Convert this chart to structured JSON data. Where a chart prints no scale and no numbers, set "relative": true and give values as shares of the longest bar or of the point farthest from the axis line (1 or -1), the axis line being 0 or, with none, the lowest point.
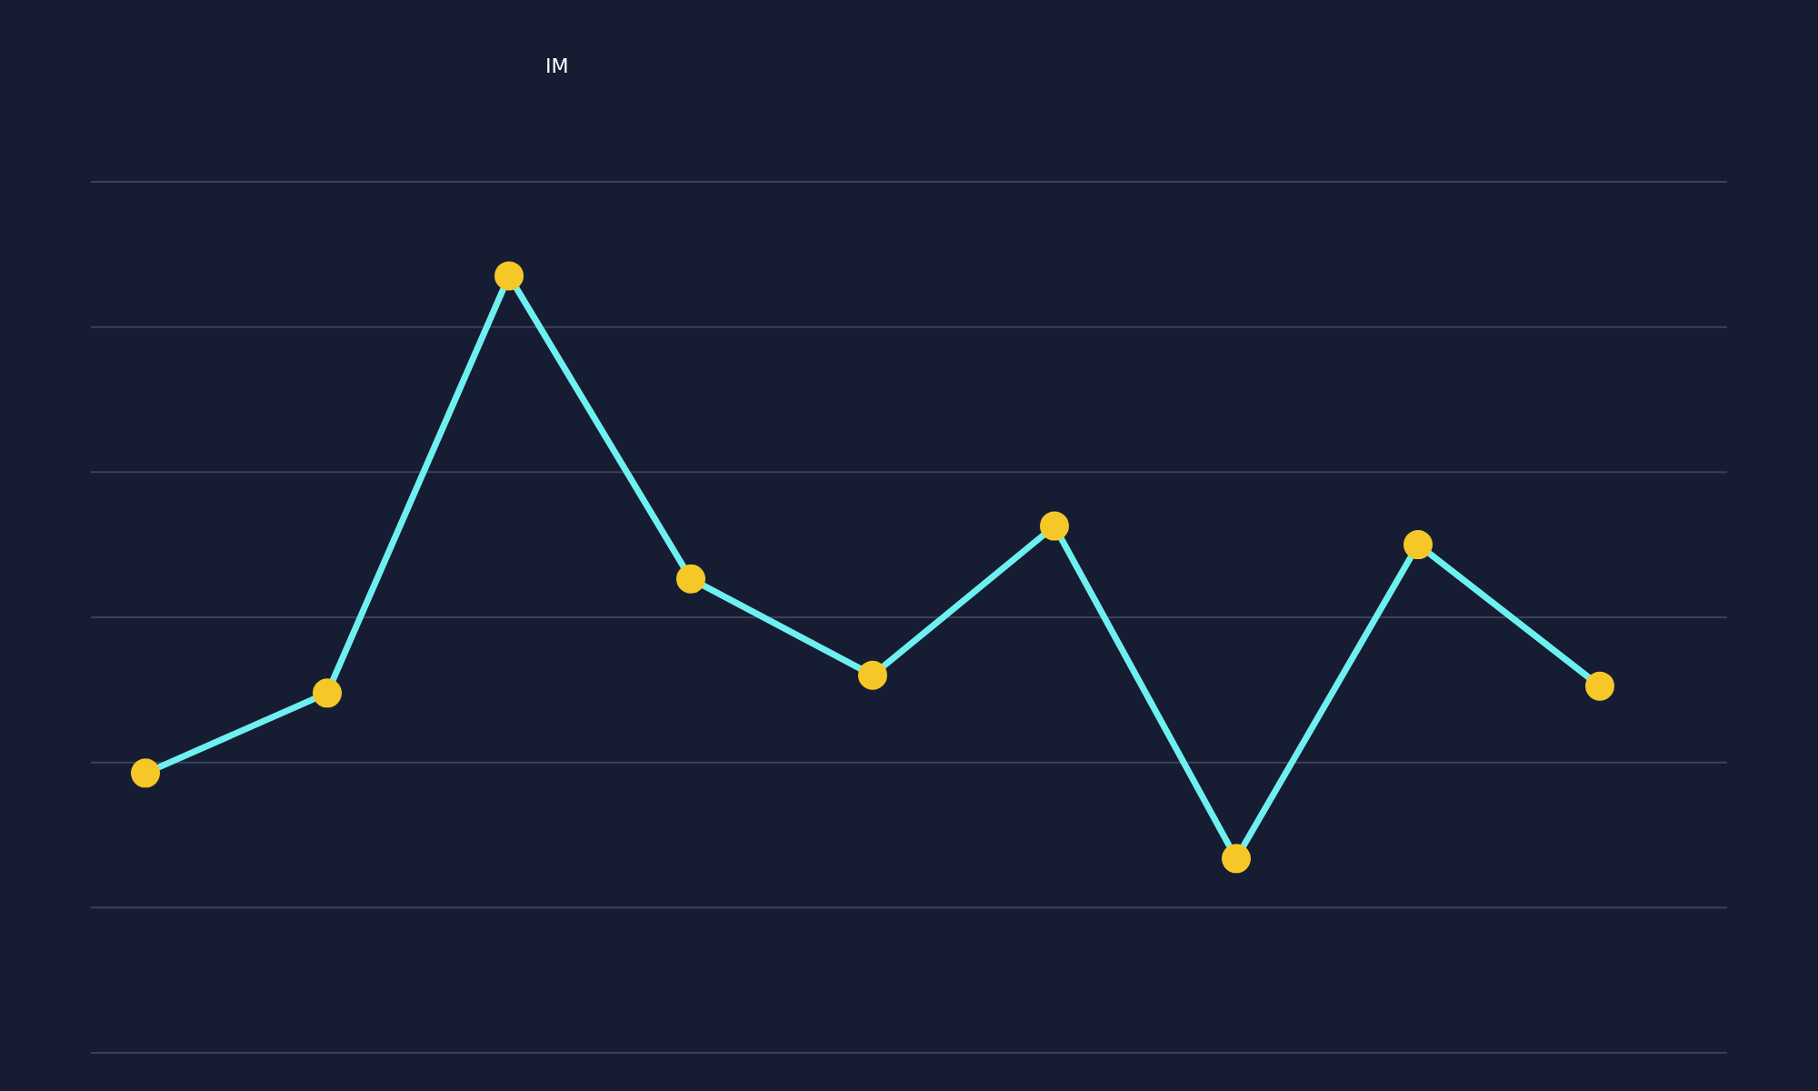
{
  "chart_data": {
    "type": "line",
    "title": "IM",
    "relative": true,
    "grid": "y",
    "marker": "circle",
    "line_style": "solid",
    "categories": [
      null,
      null,
      null,
      null,
      null,
      null,
      null,
      null,
      null
    ],
    "series": [
      {
        "color": "#6ef0f0",
        "colors": [
          "#f5c828",
          "#f5c828",
          "#f5c828",
          "#f5c828",
          "#f5c828",
          "#f5c828",
          "#f5c828",
          "#f5c828",
          "#f5c828"
        ],
        "values": [
          0.36,
          0.463,
          1,
          0.61,
          0.486,
          0.678,
          0.25,
          0.654,
          0.472
        ]
      }
    ]
  }
}
